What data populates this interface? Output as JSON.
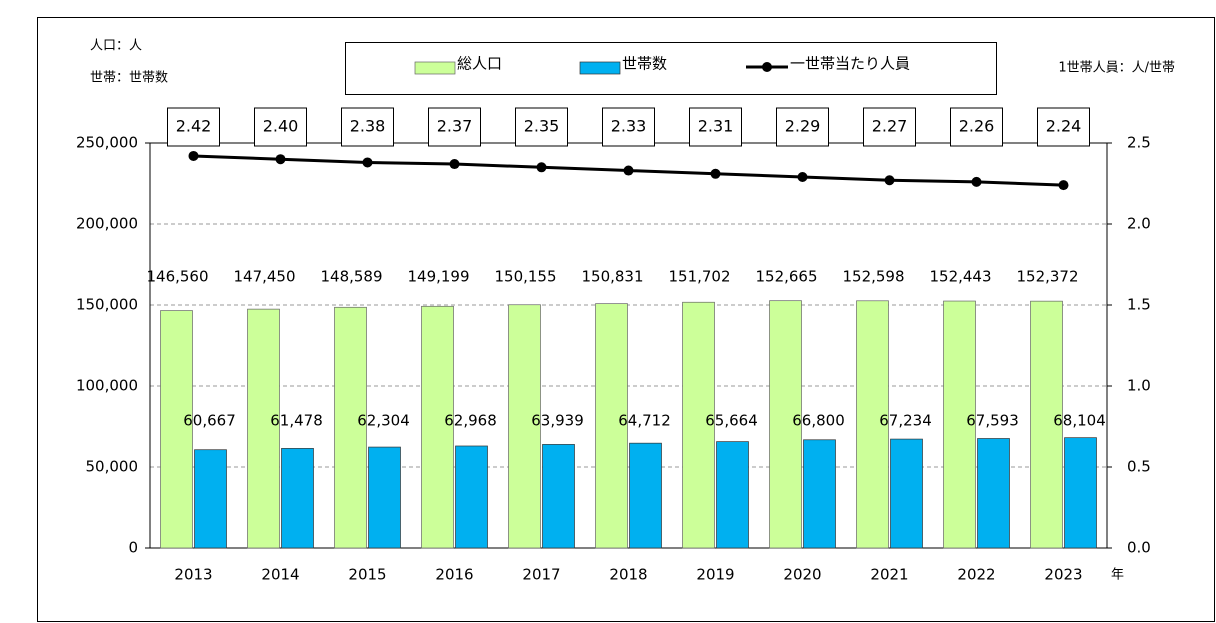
{
  "chart_data": {
    "type": "bar_line",
    "unit_left": "人口：人",
    "unit_left2": "世帯：世帯数",
    "unit_right": "1世帯人員：人/世帯",
    "x_unit": "年",
    "categories": [
      "2013",
      "2014",
      "2015",
      "2016",
      "2017",
      "2018",
      "2019",
      "2020",
      "2021",
      "2022",
      "2023"
    ],
    "series": [
      {
        "name": "総人口",
        "color": "#ccff99",
        "values": [
          146560,
          147450,
          148589,
          149199,
          150155,
          150831,
          151702,
          152665,
          152598,
          152443,
          152372
        ],
        "value_labels": [
          "146,560",
          "147,450",
          "148,589",
          "149,199",
          "150,155",
          "150,831",
          "151,702",
          "152,665",
          "152,598",
          "152,443",
          "152,372"
        ]
      },
      {
        "name": "世帯数",
        "color": "#00b0f0",
        "values": [
          60667,
          61478,
          62304,
          62968,
          63939,
          64712,
          65664,
          66800,
          67234,
          67593,
          68104
        ],
        "value_labels": [
          "60,667",
          "61,478",
          "62,304",
          "62,968",
          "63,939",
          "64,712",
          "65,664",
          "66,800",
          "67,234",
          "67,593",
          "68,104"
        ]
      },
      {
        "name": "一世帯当たり人員",
        "color": "#000000",
        "axis": "y2",
        "values": [
          2.42,
          2.4,
          2.38,
          2.37,
          2.35,
          2.33,
          2.31,
          2.29,
          2.27,
          2.26,
          2.24
        ],
        "value_labels": [
          "2.42",
          "2.40",
          "2.38",
          "2.37",
          "2.35",
          "2.33",
          "2.31",
          "2.29",
          "2.27",
          "2.26",
          "2.24"
        ]
      }
    ],
    "ylim": [
      0,
      250000
    ],
    "yticks": [
      0,
      {
        "value": 50000,
        "label": "50,000"
      },
      {
        "value": 100000,
        "label": "100,000"
      },
      {
        "value": 150000,
        "label": "150,000"
      },
      {
        "value": 200000,
        "label": "200,000"
      },
      {
        "value": 250000,
        "label": "250,000"
      }
    ],
    "y2lim": [
      0,
      2.5
    ],
    "y2ticks": [
      {
        "value": 0,
        "label": "0.0"
      },
      0.5,
      {
        "value": 1,
        "label": "1.0"
      },
      1.5,
      {
        "value": 2,
        "label": "2.0"
      },
      2.5
    ],
    "grid": true
  }
}
